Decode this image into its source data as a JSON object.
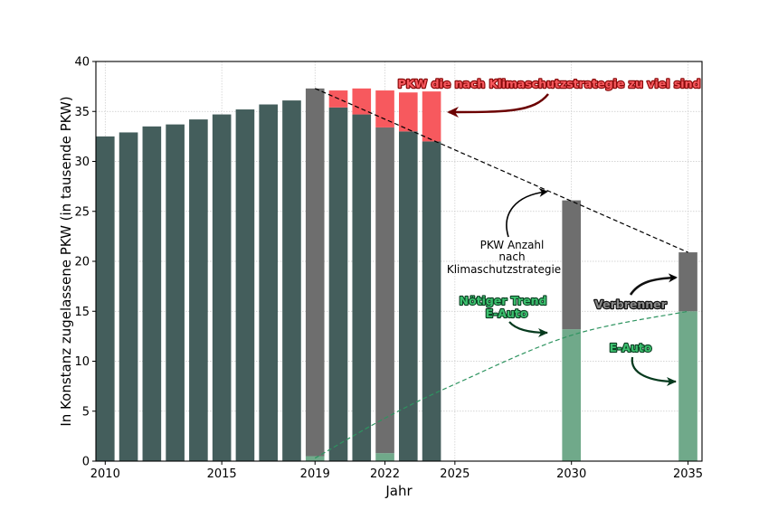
{
  "chart_data": {
    "type": "bar",
    "xlabel": "Jahr",
    "ylabel": "In Konstanz zugelassene PKW (in tausende PKW)",
    "xlim": [
      2009.6,
      2035.6
    ],
    "ylim": [
      0,
      40
    ],
    "xticks": [
      2010,
      2015,
      2019,
      2022,
      2025,
      2030,
      2035
    ],
    "yticks": [
      0,
      5,
      10,
      15,
      20,
      25,
      30,
      35,
      40
    ],
    "grid": true,
    "colors": {
      "bestand": "#445e5c",
      "verbrenner": "#6e6e6e",
      "eauto": "#70a98a",
      "zuviel": "#f7595e",
      "zuviel_text_stroke": "#8a0a0a",
      "green_text": "#0a3f22",
      "green_text_fill": "#3cc06e",
      "trend": "#2e9460",
      "strategy_line": "#000000"
    },
    "series_bestand": [
      {
        "year": 2010,
        "value": 32.5
      },
      {
        "year": 2011,
        "value": 32.9
      },
      {
        "year": 2012,
        "value": 33.5
      },
      {
        "year": 2013,
        "value": 33.7
      },
      {
        "year": 2014,
        "value": 34.2
      },
      {
        "year": 2015,
        "value": 34.7
      },
      {
        "year": 2016,
        "value": 35.2
      },
      {
        "year": 2017,
        "value": 35.7
      },
      {
        "year": 2018,
        "value": 36.1
      },
      {
        "year": 2020,
        "value": 35.4
      },
      {
        "year": 2021,
        "value": 34.7
      },
      {
        "year": 2023,
        "value": 33.0
      },
      {
        "year": 2024,
        "value": 32.0
      }
    ],
    "series_strategy_bars": [
      {
        "year": 2019,
        "eauto": 0.5,
        "total": 37.3
      },
      {
        "year": 2022,
        "eauto": 0.8,
        "total": 33.4
      },
      {
        "year": 2030,
        "eauto": 13.2,
        "total": 26.1
      },
      {
        "year": 2035,
        "eauto": 15.0,
        "total": 20.9
      }
    ],
    "series_zuviel": [
      {
        "year": 2020,
        "from": 35.4,
        "to": 37.1
      },
      {
        "year": 2021,
        "from": 34.7,
        "to": 37.3
      },
      {
        "year": 2022,
        "from": 33.4,
        "to": 37.1
      },
      {
        "year": 2023,
        "from": 33.0,
        "to": 36.9
      },
      {
        "year": 2024,
        "from": 32.0,
        "to": 37.0
      }
    ],
    "strategy_line": {
      "x": [
        2019,
        2035
      ],
      "y": [
        37.3,
        20.9
      ]
    },
    "trend_curve": {
      "x": [
        2019,
        2022,
        2025,
        2030,
        2035
      ],
      "y": [
        0.3,
        4.3,
        7.7,
        12.6,
        15.0
      ]
    },
    "annotations": {
      "zuviel": "PKW die nach Klimaschutzstrategie zu viel sind",
      "strategy_line1": "PKW Anzahl",
      "strategy_line2": "nach",
      "strategy_line3": "Klimaschutzstrategie",
      "trend_line1": "Nötiger Trend",
      "trend_line2": "E-Auto",
      "verbrenner": "Verbrenner",
      "eauto": "E-Auto"
    }
  }
}
